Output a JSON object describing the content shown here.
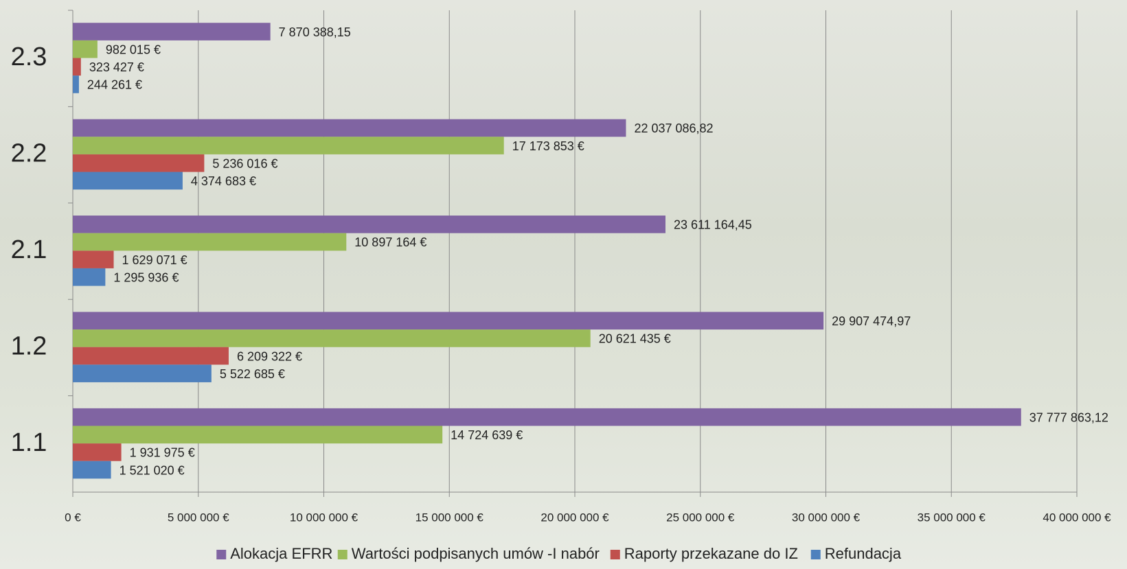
{
  "chart_data": {
    "type": "bar",
    "orientation": "horizontal",
    "categories": [
      "1.1",
      "1.2",
      "2.1",
      "2.2",
      "2.3"
    ],
    "series": [
      {
        "name": "Alokacja EFRR",
        "color": "#8064a2",
        "values": [
          37777863.12,
          29907474.97,
          23611164.45,
          22037086.82,
          7870388.15
        ],
        "value_labels": [
          "37 777 863,12",
          "29 907 474,97",
          "23 611 164,45",
          "22 037 086,82",
          "7 870 388,15"
        ]
      },
      {
        "name": "Wartości podpisanych umów -I nabór",
        "color": "#9bbb59",
        "values": [
          14724639,
          20621435,
          10897164,
          17173853,
          982015
        ],
        "value_labels": [
          "14 724 639 €",
          "20 621 435 €",
          "10 897 164 €",
          "17 173 853 €",
          "982 015 €"
        ]
      },
      {
        "name": "Raporty przekazane do IZ",
        "color": "#c0504d",
        "values": [
          1931975,
          6209322,
          1629071,
          5236016,
          323427
        ],
        "value_labels": [
          "1 931 975 €",
          "6 209 322 €",
          "1 629 071 €",
          "5 236 016 €",
          "323 427 €"
        ]
      },
      {
        "name": "Refundacja",
        "color": "#4f81bd",
        "values": [
          1521020,
          5522685,
          1295936,
          4374683,
          244261
        ],
        "value_labels": [
          "1 521 020 €",
          "5 522 685 €",
          "1 295 936 €",
          "4 374 683 €",
          "244 261 €"
        ]
      }
    ],
    "xlim": [
      0,
      40000000
    ],
    "xticks": [
      {
        "value": 0,
        "label": "0 €"
      },
      {
        "value": 5000000,
        "label": "5 000 000 €"
      },
      {
        "value": 10000000,
        "label": "10 000 000 €"
      },
      {
        "value": 15000000,
        "label": "15 000 000 €"
      },
      {
        "value": 20000000,
        "label": "20 000 000 €"
      },
      {
        "value": 25000000,
        "label": "25 000 000 €"
      },
      {
        "value": 30000000,
        "label": "30 000 000 €"
      },
      {
        "value": 35000000,
        "label": "35 000 000 €"
      },
      {
        "value": 40000000,
        "label": "40 000 000 €"
      }
    ],
    "grid": true,
    "legend": "bottom"
  }
}
